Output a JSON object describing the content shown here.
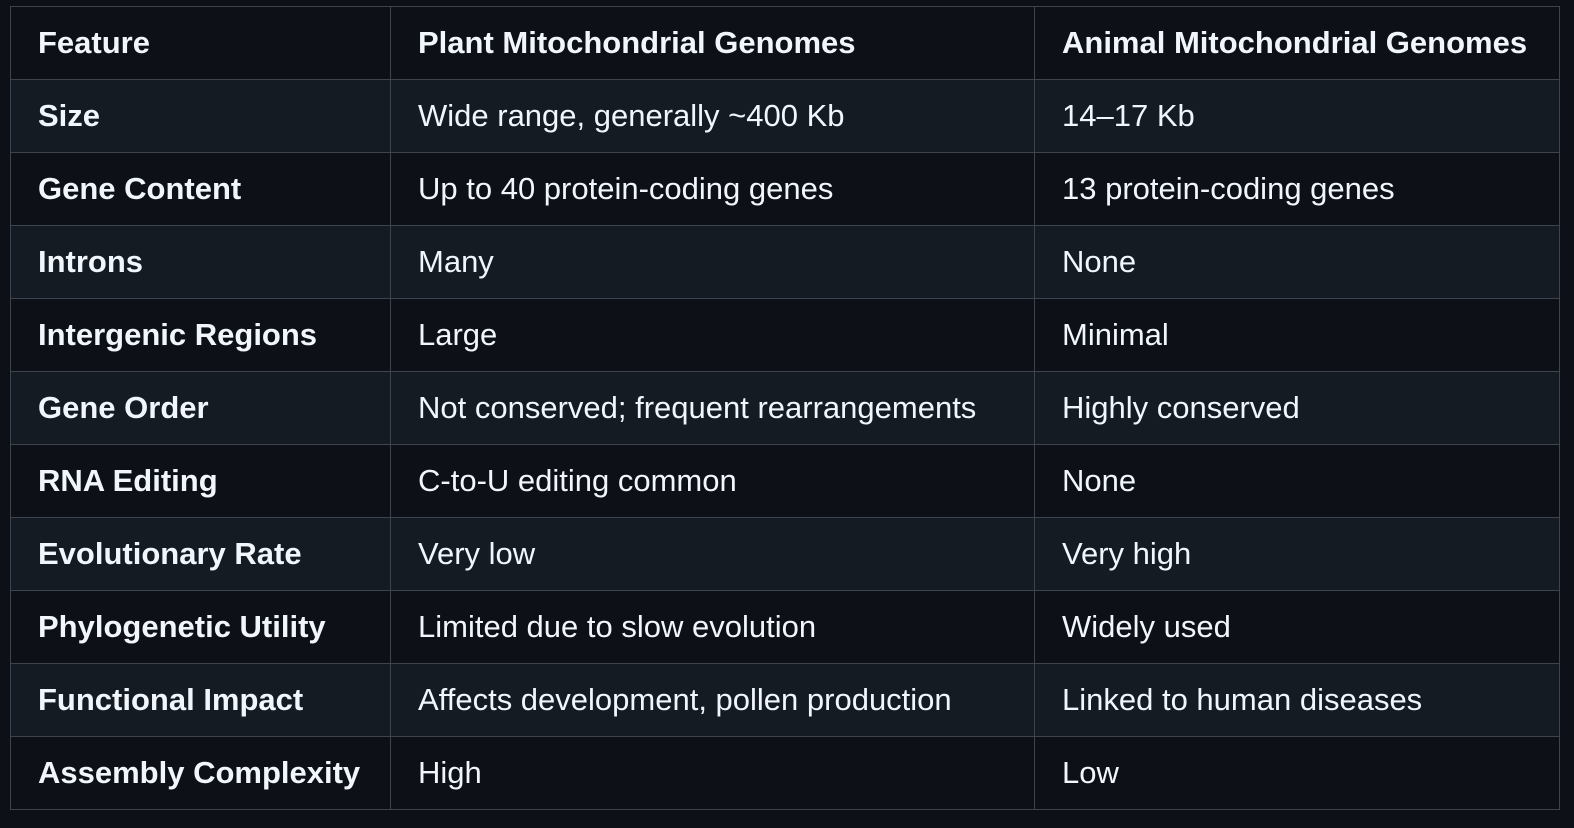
{
  "table": {
    "headers": [
      "Feature",
      "Plant Mitochondrial Genomes",
      "Animal Mitochondrial Genomes"
    ],
    "rows": [
      [
        "Size",
        "Wide range, generally ~400 Kb",
        "14–17 Kb"
      ],
      [
        "Gene Content",
        "Up to 40 protein-coding genes",
        "13 protein-coding genes"
      ],
      [
        "Introns",
        "Many",
        "None"
      ],
      [
        "Intergenic Regions",
        "Large",
        "Minimal"
      ],
      [
        "Gene Order",
        "Not conserved; frequent rearrangements",
        "Highly conserved"
      ],
      [
        "RNA Editing",
        "C-to-U editing common",
        "None"
      ],
      [
        "Evolutionary Rate",
        "Very low",
        "Very high"
      ],
      [
        "Phylogenetic Utility",
        "Limited due to slow evolution",
        "Widely used"
      ],
      [
        "Functional Impact",
        "Affects development, pollen production",
        "Linked to human diseases"
      ],
      [
        "Assembly Complexity",
        "High",
        "Low"
      ]
    ]
  },
  "colors": {
    "background": "#0d1117",
    "row_alt": "#151b23",
    "border": "#3d444d",
    "text": "#f0f6fc"
  }
}
